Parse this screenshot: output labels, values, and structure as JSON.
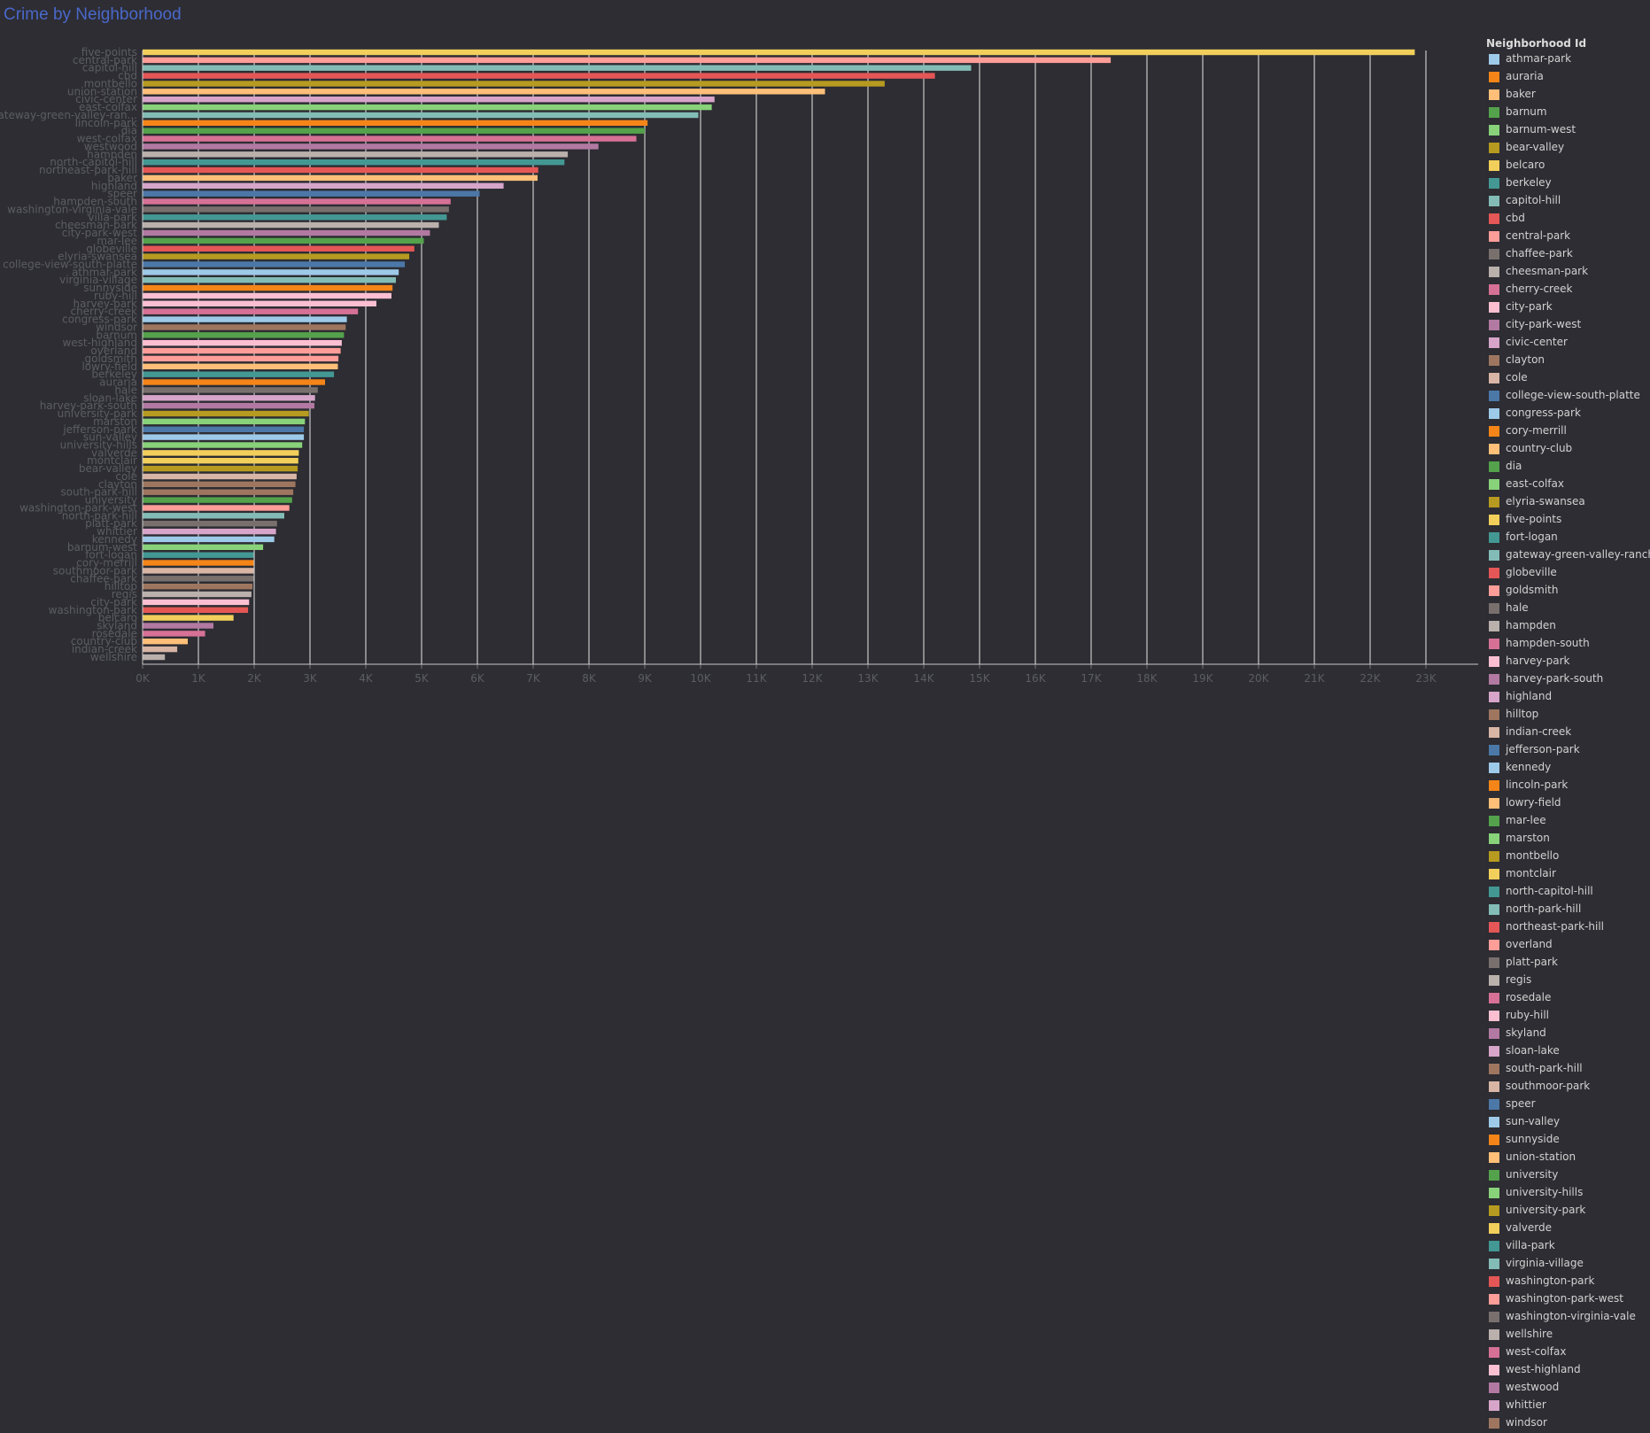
{
  "title": "Crime by Neighborhood",
  "legend": {
    "title": "Neighborhood Id",
    "items": [
      {
        "label": "athmar-park",
        "color": "#9ecae9"
      },
      {
        "label": "auraria",
        "color": "#f58518"
      },
      {
        "label": "baker",
        "color": "#ffbf79"
      },
      {
        "label": "barnum",
        "color": "#54a24b"
      },
      {
        "label": "barnum-west",
        "color": "#88d27a"
      },
      {
        "label": "bear-valley",
        "color": "#b79a20"
      },
      {
        "label": "belcaro",
        "color": "#f2cf5b"
      },
      {
        "label": "berkeley",
        "color": "#439894"
      },
      {
        "label": "capitol-hill",
        "color": "#83bcb6"
      },
      {
        "label": "cbd",
        "color": "#e45756"
      },
      {
        "label": "central-park",
        "color": "#ff9d98"
      },
      {
        "label": "chaffee-park",
        "color": "#79706e"
      },
      {
        "label": "cheesman-park",
        "color": "#bab0ac"
      },
      {
        "label": "cherry-creek",
        "color": "#d67195"
      },
      {
        "label": "city-park",
        "color": "#fcbfd2"
      },
      {
        "label": "city-park-west",
        "color": "#b279a2"
      },
      {
        "label": "civic-center",
        "color": "#d6a5c9"
      },
      {
        "label": "clayton",
        "color": "#9e765f"
      },
      {
        "label": "cole",
        "color": "#d8b5a5"
      },
      {
        "label": "college-view-south-platte",
        "color": "#4c78a8"
      },
      {
        "label": "congress-park",
        "color": "#9ecae9"
      },
      {
        "label": "cory-merrill",
        "color": "#f58518"
      },
      {
        "label": "country-club",
        "color": "#ffbf79"
      },
      {
        "label": "dia",
        "color": "#54a24b"
      },
      {
        "label": "east-colfax",
        "color": "#88d27a"
      },
      {
        "label": "elyria-swansea",
        "color": "#b79a20"
      },
      {
        "label": "five-points",
        "color": "#f2cf5b"
      },
      {
        "label": "fort-logan",
        "color": "#439894"
      },
      {
        "label": "gateway-green-valley-ranch",
        "color": "#83bcb6"
      },
      {
        "label": "globeville",
        "color": "#e45756"
      },
      {
        "label": "goldsmith",
        "color": "#ff9d98"
      },
      {
        "label": "hale",
        "color": "#79706e"
      },
      {
        "label": "hampden",
        "color": "#bab0ac"
      },
      {
        "label": "hampden-south",
        "color": "#d67195"
      },
      {
        "label": "harvey-park",
        "color": "#fcbfd2"
      },
      {
        "label": "harvey-park-south",
        "color": "#b279a2"
      },
      {
        "label": "highland",
        "color": "#d6a5c9"
      },
      {
        "label": "hilltop",
        "color": "#9e765f"
      },
      {
        "label": "indian-creek",
        "color": "#d8b5a5"
      },
      {
        "label": "jefferson-park",
        "color": "#4c78a8"
      },
      {
        "label": "kennedy",
        "color": "#9ecae9"
      },
      {
        "label": "lincoln-park",
        "color": "#f58518"
      },
      {
        "label": "lowry-field",
        "color": "#ffbf79"
      },
      {
        "label": "mar-lee",
        "color": "#54a24b"
      },
      {
        "label": "marston",
        "color": "#88d27a"
      },
      {
        "label": "montbello",
        "color": "#b79a20"
      },
      {
        "label": "montclair",
        "color": "#f2cf5b"
      },
      {
        "label": "north-capitol-hill",
        "color": "#439894"
      },
      {
        "label": "north-park-hill",
        "color": "#83bcb6"
      },
      {
        "label": "northeast-park-hill",
        "color": "#e45756"
      },
      {
        "label": "overland",
        "color": "#ff9d98"
      },
      {
        "label": "platt-park",
        "color": "#79706e"
      },
      {
        "label": "regis",
        "color": "#bab0ac"
      },
      {
        "label": "rosedale",
        "color": "#d67195"
      },
      {
        "label": "ruby-hill",
        "color": "#fcbfd2"
      },
      {
        "label": "skyland",
        "color": "#b279a2"
      },
      {
        "label": "sloan-lake",
        "color": "#d6a5c9"
      },
      {
        "label": "south-park-hill",
        "color": "#9e765f"
      },
      {
        "label": "southmoor-park",
        "color": "#d8b5a5"
      },
      {
        "label": "speer",
        "color": "#4c78a8"
      },
      {
        "label": "sun-valley",
        "color": "#9ecae9"
      },
      {
        "label": "sunnyside",
        "color": "#f58518"
      },
      {
        "label": "union-station",
        "color": "#ffbf79"
      },
      {
        "label": "university",
        "color": "#54a24b"
      },
      {
        "label": "university-hills",
        "color": "#88d27a"
      },
      {
        "label": "university-park",
        "color": "#b79a20"
      },
      {
        "label": "valverde",
        "color": "#f2cf5b"
      },
      {
        "label": "villa-park",
        "color": "#439894"
      },
      {
        "label": "virginia-village",
        "color": "#83bcb6"
      },
      {
        "label": "washington-park",
        "color": "#e45756"
      },
      {
        "label": "washington-park-west",
        "color": "#ff9d98"
      },
      {
        "label": "washington-virginia-vale",
        "color": "#79706e"
      },
      {
        "label": "wellshire",
        "color": "#bab0ac"
      },
      {
        "label": "west-colfax",
        "color": "#d67195"
      },
      {
        "label": "west-highland",
        "color": "#fcbfd2"
      },
      {
        "label": "westwood",
        "color": "#b279a2"
      },
      {
        "label": "whittier",
        "color": "#d6a5c9"
      },
      {
        "label": "windsor",
        "color": "#9e765f"
      }
    ]
  },
  "chart_data": {
    "type": "bar",
    "orientation": "horizontal",
    "title": "Crime by Neighborhood",
    "xlabel": "",
    "ylabel": "",
    "xlim": [
      0,
      24000
    ],
    "x_ticks": [
      0,
      1000,
      2000,
      3000,
      4000,
      5000,
      6000,
      7000,
      8000,
      9000,
      10000,
      11000,
      12000,
      13000,
      14000,
      15000,
      16000,
      17000,
      18000,
      19000,
      20000,
      21000,
      22000,
      23000
    ],
    "x_tick_labels": [
      "0K",
      "1K",
      "2K",
      "3K",
      "4K",
      "5K",
      "6K",
      "7K",
      "8K",
      "9K",
      "10K",
      "11K",
      "12K",
      "13K",
      "14K",
      "15K",
      "16K",
      "17K",
      "18K",
      "19K",
      "20K",
      "21K",
      "22K",
      "23K"
    ],
    "grid": "vertical",
    "legend_placement": "right",
    "categories": [
      "five-points",
      "central-park",
      "capitol-hill",
      "cbd",
      "montbello",
      "union-station",
      "civic-center",
      "east-colfax",
      "gateway-green-valley-ran...",
      "lincoln-park",
      "dia",
      "west-colfax",
      "westwood",
      "hampden",
      "north-capitol-hill",
      "northeast-park-hill",
      "baker",
      "highland",
      "speer",
      "hampden-south",
      "washington-virginia-vale",
      "villa-park",
      "cheesman-park",
      "city-park-west",
      "mar-lee",
      "globeville",
      "elyria-swansea",
      "college-view-south-platte",
      "athmar-park",
      "virginia-village",
      "sunnyside",
      "ruby-hill",
      "harvey-park",
      "cherry-creek",
      "congress-park",
      "windsor",
      "barnum",
      "west-highland",
      "overland",
      "goldsmith",
      "lowry-field",
      "berkeley",
      "auraria",
      "hale",
      "sloan-lake",
      "harvey-park-south",
      "university-park",
      "marston",
      "jefferson-park",
      "sun-valley",
      "university-hills",
      "valverde",
      "montclair",
      "bear-valley",
      "cole",
      "clayton",
      "south-park-hill",
      "university",
      "washington-park-west",
      "north-park-hill",
      "platt-park",
      "whittier",
      "kennedy",
      "barnum-west",
      "fort-logan",
      "cory-merrill",
      "southmoor-park",
      "chaffee-park",
      "hilltop",
      "regis",
      "city-park",
      "washington-park",
      "belcaro",
      "skyland",
      "rosedale",
      "country-club",
      "indian-creek",
      "wellshire"
    ],
    "values": [
      22800,
      17350,
      14850,
      14200,
      13300,
      12230,
      10250,
      10200,
      9960,
      9050,
      9000,
      8850,
      8170,
      7620,
      7560,
      7090,
      7080,
      6470,
      6040,
      5520,
      5490,
      5450,
      5310,
      5150,
      5040,
      4870,
      4780,
      4700,
      4590,
      4540,
      4480,
      4460,
      4190,
      3860,
      3660,
      3640,
      3610,
      3570,
      3550,
      3510,
      3500,
      3430,
      3270,
      3140,
      3090,
      3080,
      2980,
      2910,
      2890,
      2890,
      2860,
      2800,
      2790,
      2780,
      2760,
      2740,
      2700,
      2680,
      2630,
      2540,
      2410,
      2390,
      2360,
      2160,
      1990,
      1990,
      1990,
      1990,
      1970,
      1950,
      1910,
      1890,
      1630,
      1270,
      1120,
      810,
      620,
      400
    ],
    "colors": [
      "#f2cf5b",
      "#ff9d98",
      "#83bcb6",
      "#e45756",
      "#b79a20",
      "#ffbf79",
      "#d6a5c9",
      "#88d27a",
      "#83bcb6",
      "#f58518",
      "#54a24b",
      "#d67195",
      "#b279a2",
      "#bab0ac",
      "#439894",
      "#e45756",
      "#ffbf79",
      "#d6a5c9",
      "#4c78a8",
      "#d67195",
      "#79706e",
      "#439894",
      "#bab0ac",
      "#b279a2",
      "#54a24b",
      "#e45756",
      "#b79a20",
      "#4c78a8",
      "#9ecae9",
      "#83bcb6",
      "#f58518",
      "#fcbfd2",
      "#fcbfd2",
      "#d67195",
      "#9ecae9",
      "#9e765f",
      "#54a24b",
      "#fcbfd2",
      "#ff9d98",
      "#ff9d98",
      "#ffbf79",
      "#439894",
      "#f58518",
      "#79706e",
      "#d6a5c9",
      "#b279a2",
      "#b79a20",
      "#88d27a",
      "#4c78a8",
      "#9ecae9",
      "#88d27a",
      "#f2cf5b",
      "#f2cf5b",
      "#b79a20",
      "#d8b5a5",
      "#9e765f",
      "#9e765f",
      "#54a24b",
      "#ff9d98",
      "#83bcb6",
      "#79706e",
      "#d6a5c9",
      "#9ecae9",
      "#88d27a",
      "#439894",
      "#f58518",
      "#d8b5a5",
      "#79706e",
      "#9e765f",
      "#bab0ac",
      "#fcbfd2",
      "#e45756",
      "#f2cf5b",
      "#b279a2",
      "#d67195",
      "#ffbf79",
      "#d8b5a5",
      "#bab0ac"
    ]
  }
}
